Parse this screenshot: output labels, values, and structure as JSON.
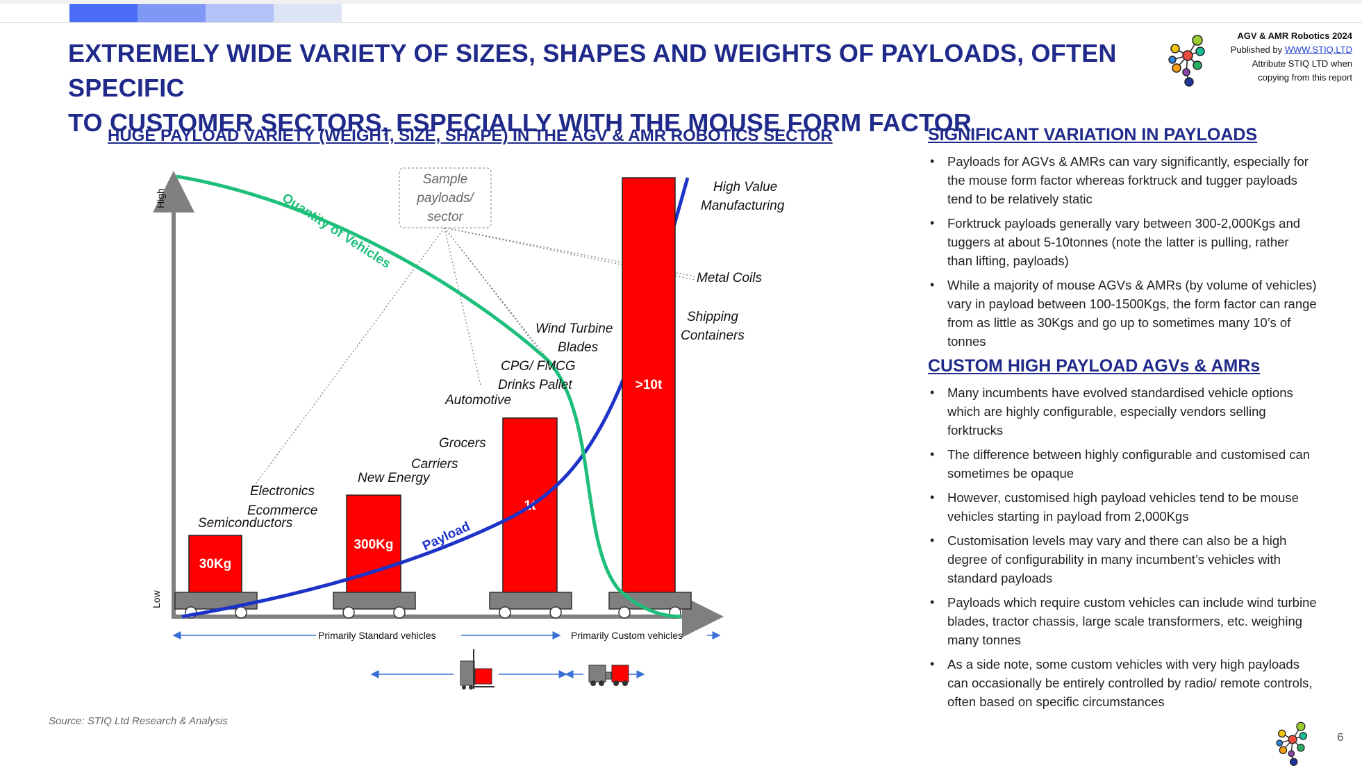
{
  "header": {
    "progress_colors": [
      "#4a6cf7",
      "#7f97f5",
      "#b3c2f7",
      "#dde4f5"
    ],
    "title_line1": "EXTREMELY WIDE VARIETY OF SIZES, SHAPES AND WEIGHTS OF PAYLOADS, OFTEN SPECIFIC",
    "title_line2": "TO CUSTOMER SECTORS, ESPECIALLY WITH THE MOUSE FORM FACTOR"
  },
  "publisher": {
    "title": "AGV & AMR Robotics 2024",
    "published_by_prefix": "Published by ",
    "link_text": "WWW.STIQ.LTD",
    "line3": "Attribute STIQ LTD when",
    "line4": "copying from this report"
  },
  "diagram": {
    "title": "HUGE PAYLOAD VARIETY (WEIGHT, SIZE, SHAPE) IN THE AGV & AMR ROBOTICS SECTOR",
    "axis_high": "High",
    "axis_low": "Low",
    "callout_lines": [
      "Sample",
      "payloads/",
      "sector"
    ],
    "quantity_label": "Quantity of Vehicles",
    "payload_label": "Payload",
    "bars": [
      {
        "label": "30Kg"
      },
      {
        "label": "300Kg"
      },
      {
        "label": "1t"
      },
      {
        "label": ">10t"
      }
    ],
    "sectors": {
      "semiconductors": "Semiconductors",
      "electronics": "Electronics",
      "ecommerce": "Ecommerce",
      "new_energy": "New Energy",
      "carriers": "Carriers",
      "grocers": "Grocers",
      "automotive": "Automotive",
      "cpg_line1": "CPG/ FMCG",
      "cpg_line2": "Drinks Pallet",
      "wind_line1": "Wind Turbine",
      "wind_line2": "Blades",
      "shipping_line1": "Shipping",
      "shipping_line2": "Containers",
      "metal_coils": "Metal Coils",
      "hvm_line1": "High Value",
      "hvm_line2": "Manufacturing"
    },
    "range_standard": "Primarily Standard vehicles",
    "range_custom": "Primarily Custom vehicles",
    "colors": {
      "bar": "#ff0000",
      "quantity_curve": "#1dbf7a",
      "payload_curve": "#1d33c8",
      "base": "#7f7f7f",
      "arrow": "#3a6fd6"
    }
  },
  "source": "Source: STIQ Ltd Research & Analysis",
  "right": {
    "section1_title": "SIGNIFICANT VARIATION IN PAYLOADS",
    "section1_bullets": [
      "Payloads for AGVs & AMRs can vary significantly, especially for the mouse form factor whereas forktruck and tugger payloads tend to be relatively static",
      "Forktruck payloads generally vary between 300-2,000Kgs and tuggers at about 5-10tonnes (note the latter is pulling, rather than lifting, payloads)",
      "While a majority of mouse AGVs & AMRs (by volume of vehicles) vary in payload between 100-1500Kgs, the form factor can range from as little as 30Kgs and go up to sometimes many 10’s of tonnes"
    ],
    "section2_title": "CUSTOM HIGH PAYLOAD AGVs & AMRs",
    "section2_bullets": [
      "Many incumbents have evolved standardised vehicle options which are highly configurable, especially vendors selling forktrucks",
      "The difference between highly configurable and customised can sometimes be opaque",
      "However, customised high payload vehicles tend to be mouse vehicles starting in payload from 2,000Kgs",
      "Customisation levels may vary and there can also be a high degree of configurability in many incumbent’s vehicles with standard payloads",
      "Payloads which require custom vehicles can include wind turbine blades, tractor chassis, large scale transformers, etc. weighing many tonnes",
      "As a side note, some custom vehicles with very high payloads can occasionally be entirely controlled by radio/ remote controls, often based on specific circumstances"
    ]
  },
  "page_number": "6"
}
